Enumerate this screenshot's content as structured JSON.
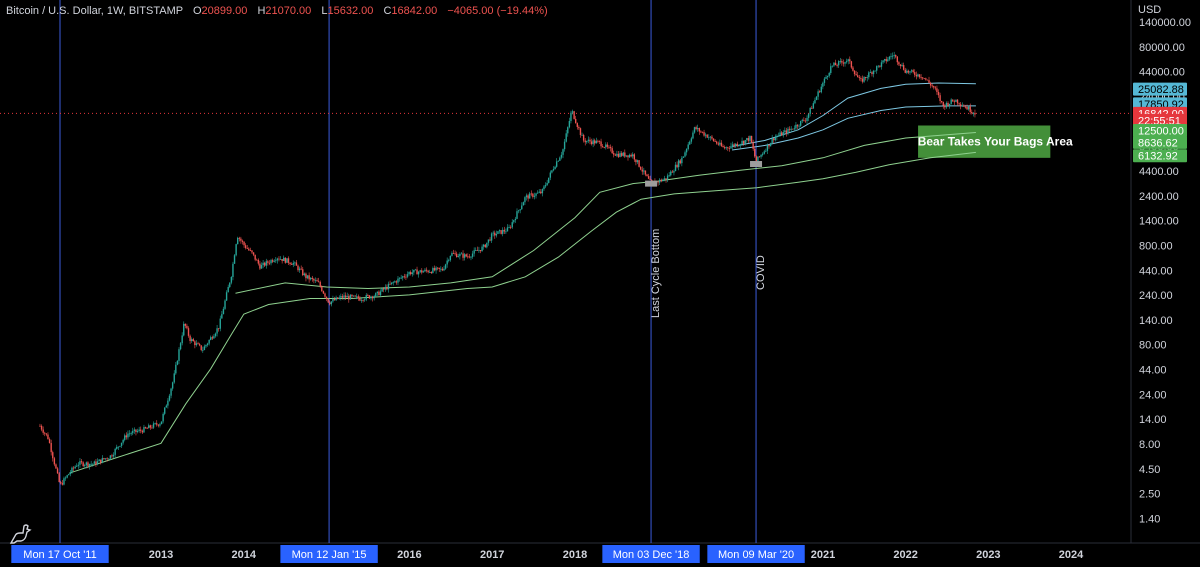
{
  "header": {
    "symbol": "Bitcoin / U.S. Dollar, 1W, BITSTAMP",
    "open_label": "O",
    "open": "20899.00",
    "high_label": "H",
    "high": "21070.00",
    "low_label": "L",
    "low": "15632.00",
    "close_label": "C",
    "close": "16842.00",
    "change": "−4065.00 (−19.44%)"
  },
  "currency": "USD",
  "chart_data": {
    "type": "candlestick",
    "scale": "log",
    "x_range": [
      2011.2,
      2024.6
    ],
    "y_ticks": [
      "140000.00",
      "80000.00",
      "44000.00",
      "24000.00",
      "12500.00",
      "8400.00",
      "4400.00",
      "2400.00",
      "1400.00",
      "800.00",
      "440.00",
      "240.00",
      "140.00",
      "80.00",
      "44.00",
      "24.00",
      "14.00",
      "8.00",
      "4.50",
      "2.50",
      "1.40"
    ],
    "x_ticks": [
      {
        "label": "Mon 17 Oct '11",
        "t": 2011.79,
        "highlight": true
      },
      {
        "label": "2013",
        "t": 2013.0
      },
      {
        "label": "2014",
        "t": 2014.0
      },
      {
        "label": "Mon 12 Jan '15",
        "t": 2015.03,
        "highlight": true
      },
      {
        "label": "2016",
        "t": 2016.0
      },
      {
        "label": "2017",
        "t": 2017.0
      },
      {
        "label": "2018",
        "t": 2018.0
      },
      {
        "label": "Mon 03 Dec '18",
        "t": 2018.92,
        "highlight": true
      },
      {
        "label": "Mon 09 Mar '20",
        "t": 2020.19,
        "highlight": true
      },
      {
        "label": "2021",
        "t": 2021.0
      },
      {
        "label": "2022",
        "t": 2022.0
      },
      {
        "label": "2023",
        "t": 2023.0
      },
      {
        "label": "2024",
        "t": 2024.0
      }
    ],
    "vertical_lines": [
      {
        "t": 2011.79,
        "label": ""
      },
      {
        "t": 2015.03,
        "label": ""
      },
      {
        "t": 2018.92,
        "label": "Last Cycle Bottom"
      },
      {
        "t": 2020.19,
        "label": "COVID"
      }
    ],
    "price_path": [
      [
        2011.55,
        12
      ],
      [
        2011.65,
        9
      ],
      [
        2011.79,
        3
      ],
      [
        2011.9,
        4
      ],
      [
        2012.0,
        5
      ],
      [
        2012.2,
        5
      ],
      [
        2012.4,
        6
      ],
      [
        2012.6,
        10
      ],
      [
        2012.8,
        11
      ],
      [
        2013.0,
        13
      ],
      [
        2013.15,
        35
      ],
      [
        2013.28,
        130
      ],
      [
        2013.35,
        90
      ],
      [
        2013.5,
        70
      ],
      [
        2013.7,
        120
      ],
      [
        2013.85,
        400
      ],
      [
        2013.92,
        1000
      ],
      [
        2014.0,
        800
      ],
      [
        2014.1,
        650
      ],
      [
        2014.2,
        480
      ],
      [
        2014.4,
        600
      ],
      [
        2014.6,
        520
      ],
      [
        2014.75,
        380
      ],
      [
        2014.9,
        330
      ],
      [
        2015.03,
        210
      ],
      [
        2015.2,
        240
      ],
      [
        2015.4,
        230
      ],
      [
        2015.6,
        250
      ],
      [
        2015.8,
        330
      ],
      [
        2016.0,
        420
      ],
      [
        2016.4,
        450
      ],
      [
        2016.5,
        650
      ],
      [
        2016.7,
        610
      ],
      [
        2016.9,
        760
      ],
      [
        2017.0,
        1000
      ],
      [
        2017.2,
        1150
      ],
      [
        2017.4,
        2400
      ],
      [
        2017.6,
        2700
      ],
      [
        2017.75,
        5000
      ],
      [
        2017.85,
        7000
      ],
      [
        2017.96,
        18000
      ],
      [
        2018.1,
        9000
      ],
      [
        2018.3,
        8500
      ],
      [
        2018.5,
        6500
      ],
      [
        2018.7,
        6400
      ],
      [
        2018.85,
        4000
      ],
      [
        2018.92,
        3300
      ],
      [
        2019.1,
        3700
      ],
      [
        2019.3,
        6000
      ],
      [
        2019.45,
        12000
      ],
      [
        2019.6,
        10000
      ],
      [
        2019.8,
        7500
      ],
      [
        2020.0,
        8500
      ],
      [
        2020.12,
        9500
      ],
      [
        2020.19,
        5500
      ],
      [
        2020.4,
        9500
      ],
      [
        2020.6,
        11500
      ],
      [
        2020.8,
        15000
      ],
      [
        2020.95,
        28000
      ],
      [
        2021.1,
        50000
      ],
      [
        2021.3,
        58000
      ],
      [
        2021.45,
        35000
      ],
      [
        2021.6,
        45000
      ],
      [
        2021.85,
        66000
      ],
      [
        2022.0,
        45000
      ],
      [
        2022.2,
        40000
      ],
      [
        2022.35,
        30000
      ],
      [
        2022.45,
        20000
      ],
      [
        2022.6,
        23000
      ],
      [
        2022.75,
        19000
      ],
      [
        2022.85,
        16842
      ]
    ],
    "moving_averages": [
      {
        "name": "",
        "color": "#7ec8e3",
        "points": [
          [
            2019.9,
            7800
          ],
          [
            2020.3,
            9000
          ],
          [
            2020.7,
            11500
          ],
          [
            2021.0,
            16000
          ],
          [
            2021.3,
            24000
          ],
          [
            2021.7,
            30000
          ],
          [
            2022.0,
            33000
          ],
          [
            2022.4,
            34000
          ],
          [
            2022.85,
            33500
          ]
        ]
      },
      {
        "name": "",
        "color": "#7ec8e3",
        "points": [
          [
            2019.9,
            7200
          ],
          [
            2020.3,
            8000
          ],
          [
            2020.7,
            9500
          ],
          [
            2021.0,
            11500
          ],
          [
            2021.3,
            15000
          ],
          [
            2021.7,
            18000
          ],
          [
            2022.0,
            19500
          ],
          [
            2022.5,
            20000
          ],
          [
            2022.85,
            20000
          ]
        ]
      },
      {
        "name": "",
        "color": "#8fd18f",
        "points": [
          [
            2013.9,
            260
          ],
          [
            2014.5,
            330
          ],
          [
            2015.0,
            300
          ],
          [
            2015.5,
            290
          ],
          [
            2016.0,
            300
          ],
          [
            2016.5,
            330
          ],
          [
            2017.0,
            380
          ],
          [
            2017.5,
            700
          ],
          [
            2018.0,
            1500
          ],
          [
            2018.3,
            2700
          ],
          [
            2018.7,
            3300
          ],
          [
            2019.0,
            3500
          ],
          [
            2019.5,
            4000
          ],
          [
            2020.0,
            4500
          ],
          [
            2020.5,
            5000
          ],
          [
            2021.0,
            6000
          ],
          [
            2021.5,
            8000
          ],
          [
            2022.0,
            9500
          ],
          [
            2022.85,
            10800
          ]
        ]
      },
      {
        "name": "",
        "color": "#8fd18f",
        "points": [
          [
            2011.9,
            4.0
          ],
          [
            2012.4,
            5.5
          ],
          [
            2013.0,
            8
          ],
          [
            2013.3,
            20
          ],
          [
            2013.6,
            45
          ],
          [
            2013.85,
            100
          ],
          [
            2014.0,
            160
          ],
          [
            2014.3,
            200
          ],
          [
            2014.8,
            230
          ],
          [
            2015.3,
            230
          ],
          [
            2016.0,
            250
          ],
          [
            2016.7,
            290
          ],
          [
            2017.0,
            300
          ],
          [
            2017.4,
            380
          ],
          [
            2017.8,
            600
          ],
          [
            2018.2,
            1100
          ],
          [
            2018.5,
            1700
          ],
          [
            2018.8,
            2300
          ],
          [
            2019.2,
            2600
          ],
          [
            2019.7,
            2800
          ],
          [
            2020.2,
            3000
          ],
          [
            2020.7,
            3400
          ],
          [
            2021.0,
            3700
          ],
          [
            2021.4,
            4300
          ],
          [
            2021.8,
            5100
          ],
          [
            2022.3,
            6000
          ],
          [
            2022.85,
            6800
          ]
        ]
      }
    ],
    "right_labels": [
      {
        "value": "25082.88",
        "price": 29500,
        "bg": "#55b8d6",
        "fg": "#000000"
      },
      {
        "value": "17850.92",
        "price": 21000,
        "bg": "#55b8d6",
        "fg": "#000000"
      },
      {
        "value": "16842.00",
        "price": 16842,
        "bg": "#e5373d",
        "fg": "#ffffff"
      },
      {
        "value": "22:55:51",
        "price": 14300,
        "bg": "#e5373d",
        "fg": "#ffffff"
      },
      {
        "value": "12500.00",
        "price": 11300,
        "bg": "#4caf50",
        "fg": "#ffffff"
      },
      {
        "value": "8636.62",
        "price": 8600,
        "bg": "#4caf50",
        "fg": "#ffffff"
      },
      {
        "value": "6132.92",
        "price": 6300,
        "bg": "#4caf50",
        "fg": "#ffffff"
      }
    ],
    "annotation_box": {
      "label": "Bear Takes Your Bags Area",
      "t_start": 2022.15,
      "t_end": 2023.75,
      "price_top": 12700,
      "price_bottom": 6000,
      "color": "#4a9e3f"
    },
    "current_price": 16842
  }
}
